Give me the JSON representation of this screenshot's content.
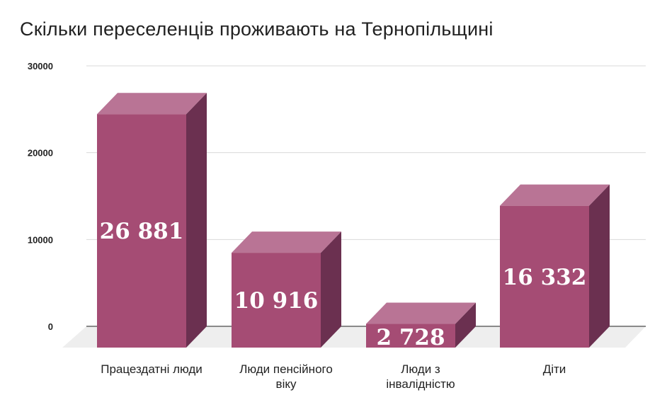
{
  "chart_data": {
    "type": "bar",
    "title": "Скільки переселенців проживають на Тернопільщині",
    "xlabel": "",
    "ylabel": "",
    "categories": [
      [
        "Працездатні люди"
      ],
      [
        "Люди пенсійного",
        "віку"
      ],
      [
        "Люди з",
        "інвалідністю"
      ],
      [
        "Діти"
      ]
    ],
    "values": [
      26881,
      10916,
      2728,
      16332
    ],
    "data_labels": [
      "26 881",
      "10 916",
      "2 728",
      "16 332"
    ],
    "y_ticks": [
      "0",
      "10000",
      "20000",
      "30000"
    ],
    "ylim": [
      0,
      30000
    ],
    "grid": true,
    "colors": {
      "front": "#a54c74",
      "top": "#b97495",
      "side": "#6b3050",
      "floor": "#eeeeee",
      "grid": "#d9d9d9",
      "axis": "#555555"
    }
  }
}
